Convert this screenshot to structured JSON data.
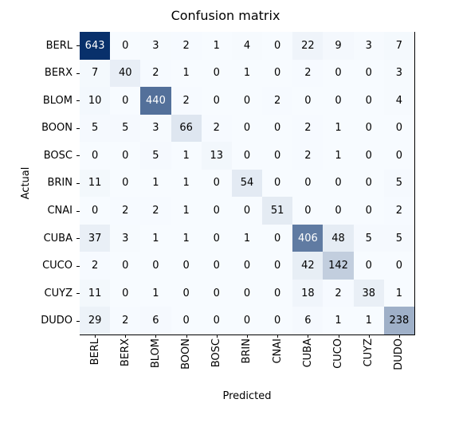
{
  "confusion_matrix": {
    "type": "heatmap",
    "title": "Confusion matrix",
    "title_fontsize": 16,
    "xlabel": "Predicted",
    "ylabel": "Actual",
    "label_fontsize": 13,
    "cell_fontsize": 13,
    "categories": [
      "BERL",
      "BERX",
      "BLOM",
      "BOON",
      "BOSC",
      "BRIN",
      "CNAI",
      "CUBA",
      "CUCO",
      "CUYZ",
      "DUDO"
    ],
    "values": [
      [
        643,
        0,
        3,
        2,
        1,
        4,
        0,
        22,
        9,
        3,
        7
      ],
      [
        7,
        40,
        2,
        1,
        0,
        1,
        0,
        2,
        0,
        0,
        3
      ],
      [
        10,
        0,
        440,
        2,
        0,
        0,
        2,
        0,
        0,
        0,
        4
      ],
      [
        5,
        5,
        3,
        66,
        2,
        0,
        0,
        2,
        1,
        0,
        0
      ],
      [
        0,
        0,
        5,
        1,
        13,
        0,
        0,
        2,
        1,
        0,
        0
      ],
      [
        11,
        0,
        1,
        1,
        0,
        54,
        0,
        0,
        0,
        0,
        5
      ],
      [
        0,
        2,
        2,
        1,
        0,
        0,
        51,
        0,
        0,
        0,
        2
      ],
      [
        37,
        3,
        1,
        1,
        0,
        1,
        0,
        406,
        48,
        5,
        5
      ],
      [
        2,
        0,
        0,
        0,
        0,
        0,
        0,
        42,
        142,
        0,
        0
      ],
      [
        11,
        0,
        1,
        0,
        0,
        0,
        0,
        18,
        2,
        38,
        1
      ],
      [
        29,
        2,
        6,
        0,
        0,
        0,
        0,
        6,
        1,
        1,
        238
      ]
    ],
    "color_min": "#f7fbff",
    "color_max": "#08306b",
    "text_color_dark": "#000000",
    "text_color_light": "#ffffff",
    "background_color": "#ffffff",
    "vmax": 643,
    "vmin": 0,
    "n": 11,
    "light_threshold": 350
  }
}
